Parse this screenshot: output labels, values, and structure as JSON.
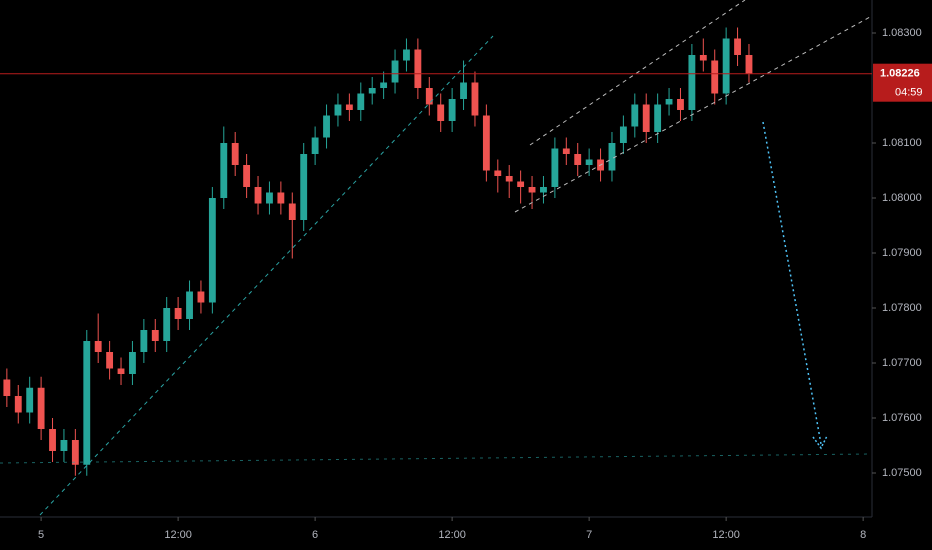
{
  "chart_data": {
    "type": "candlestick",
    "x": [
      -3,
      -2,
      -1,
      0,
      1,
      2,
      3,
      4,
      5,
      6,
      7,
      8,
      9,
      10,
      11,
      12,
      13,
      14,
      15,
      16,
      17,
      18,
      19,
      20,
      21,
      22,
      23,
      24,
      25,
      26,
      27,
      28,
      29,
      30,
      31,
      32,
      33,
      34,
      35,
      36,
      37,
      38,
      39,
      40,
      41,
      42,
      43,
      44,
      45,
      46,
      47,
      48,
      49,
      50,
      51,
      52,
      53,
      54,
      55,
      56,
      57,
      58,
      59,
      60,
      61,
      62
    ],
    "open": [
      1.0767,
      1.0764,
      1.0761,
      1.07655,
      1.0758,
      1.0754,
      1.0756,
      1.07515,
      1.0774,
      1.0772,
      1.0769,
      1.0768,
      1.0772,
      1.0776,
      1.0774,
      1.078,
      1.0778,
      1.0783,
      1.0781,
      1.08,
      1.081,
      1.0806,
      1.0802,
      1.0799,
      1.0801,
      1.0799,
      1.0796,
      1.0808,
      1.0811,
      1.0815,
      1.0817,
      1.0816,
      1.0819,
      1.082,
      1.0821,
      1.0825,
      1.0827,
      1.082,
      1.0817,
      1.0814,
      1.0818,
      1.0821,
      1.0815,
      1.0805,
      1.0804,
      1.0803,
      1.0802,
      1.0801,
      1.0802,
      1.0809,
      1.0808,
      1.0806,
      1.0807,
      1.0805,
      1.081,
      1.0813,
      1.0817,
      1.0812,
      1.0817,
      1.0818,
      1.0816,
      1.0826,
      1.0825,
      1.0819,
      1.0829,
      1.0826
    ],
    "high": [
      1.0769,
      1.0766,
      1.07675,
      1.07675,
      1.076,
      1.0758,
      1.0758,
      1.0776,
      1.0779,
      1.0774,
      1.0771,
      1.0774,
      1.0778,
      1.0778,
      1.0782,
      1.0782,
      1.0785,
      1.0785,
      1.0802,
      1.0813,
      1.0812,
      1.0808,
      1.0804,
      1.0803,
      1.0803,
      1.0801,
      1.081,
      1.0813,
      1.0817,
      1.0819,
      1.0819,
      1.0821,
      1.0822,
      1.0823,
      1.0827,
      1.0829,
      1.0829,
      1.0822,
      1.0819,
      1.082,
      1.0825,
      1.0823,
      1.0817,
      1.0807,
      1.0806,
      1.0805,
      1.0804,
      1.0804,
      1.0811,
      1.0811,
      1.081,
      1.0809,
      1.0809,
      1.0812,
      1.0815,
      1.0819,
      1.0819,
      1.0819,
      1.082,
      1.082,
      1.0828,
      1.0829,
      1.0827,
      1.0831,
      1.0831,
      1.0828
    ],
    "low": [
      1.0762,
      1.0759,
      1.0759,
      1.0756,
      1.0752,
      1.0752,
      1.07495,
      1.07495,
      1.077,
      1.0767,
      1.0766,
      1.0766,
      1.077,
      1.0772,
      1.0772,
      1.0776,
      1.0776,
      1.0779,
      1.0779,
      1.0798,
      1.0804,
      1.08,
      1.0797,
      1.0797,
      1.0797,
      1.0789,
      1.0794,
      1.0806,
      1.0809,
      1.0813,
      1.0814,
      1.0814,
      1.0817,
      1.0818,
      1.0819,
      1.0823,
      1.0818,
      1.0815,
      1.0812,
      1.0812,
      1.0816,
      1.0813,
      1.0803,
      1.0801,
      1.08,
      1.0799,
      1.0798,
      1.0799,
      1.08,
      1.0806,
      1.0804,
      1.0804,
      1.0803,
      1.0803,
      1.0808,
      1.0811,
      1.081,
      1.081,
      1.0815,
      1.0814,
      1.0814,
      1.0823,
      1.0817,
      1.0817,
      1.0824,
      1.0821
    ],
    "close": [
      1.0764,
      1.0761,
      1.07655,
      1.0758,
      1.0754,
      1.0756,
      1.07515,
      1.0774,
      1.0772,
      1.0769,
      1.0768,
      1.0772,
      1.0776,
      1.0774,
      1.078,
      1.0778,
      1.0783,
      1.0781,
      1.08,
      1.081,
      1.0806,
      1.0802,
      1.0799,
      1.0801,
      1.0799,
      1.0796,
      1.0808,
      1.0811,
      1.0815,
      1.0817,
      1.0816,
      1.0819,
      1.082,
      1.0821,
      1.0825,
      1.0827,
      1.082,
      1.0817,
      1.0814,
      1.0818,
      1.0821,
      1.0815,
      1.0805,
      1.0804,
      1.0803,
      1.0802,
      1.0801,
      1.0802,
      1.0809,
      1.0808,
      1.0806,
      1.0807,
      1.0805,
      1.081,
      1.0813,
      1.0817,
      1.0812,
      1.0817,
      1.0818,
      1.0816,
      1.0826,
      1.0825,
      1.0819,
      1.0829,
      1.0826,
      1.08226
    ],
    "up_color": "#26a69a",
    "down_color": "#ef5350",
    "xlim": [
      -3.6,
      72.6
    ],
    "ylim": [
      1.0742,
      1.0836
    ],
    "xticks": [
      {
        "value": 0,
        "label": "5"
      },
      {
        "value": 12,
        "label": "12:00"
      },
      {
        "value": 24,
        "label": "6"
      },
      {
        "value": 36,
        "label": "12:00"
      },
      {
        "value": 48,
        "label": "7"
      },
      {
        "value": 60,
        "label": "12:00"
      },
      {
        "value": 72,
        "label": "8"
      }
    ],
    "yticks": [
      {
        "value": 1.075,
        "label": "1.07500"
      },
      {
        "value": 1.076,
        "label": "1.07600"
      },
      {
        "value": 1.077,
        "label": "1.07700"
      },
      {
        "value": 1.078,
        "label": "1.07800"
      },
      {
        "value": 1.079,
        "label": "1.07900"
      },
      {
        "value": 1.08,
        "label": "1.08000"
      },
      {
        "value": 1.081,
        "label": "1.08100"
      },
      {
        "value": 1.083,
        "label": "1.08300"
      }
    ],
    "last_price": 1.08226,
    "countdown": "04:59",
    "price_line_color": "#b71c1c"
  }
}
